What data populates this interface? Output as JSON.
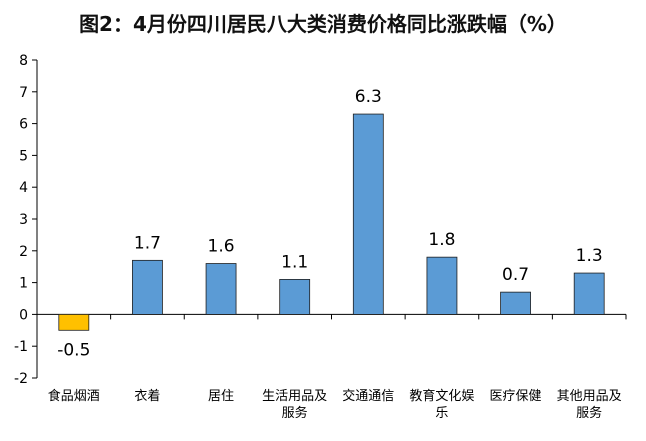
{
  "chart_data": {
    "type": "bar",
    "title": "图2：4月份四川居民八大类消费价格同比涨跌幅（%）",
    "categories": [
      [
        "食品烟酒"
      ],
      [
        "衣着"
      ],
      [
        "居住"
      ],
      [
        "生活用品及",
        "服务"
      ],
      [
        "交通通信"
      ],
      [
        "教育文化娱",
        "乐"
      ],
      [
        "医疗保健"
      ],
      [
        "其他用品及",
        "服务"
      ]
    ],
    "values": [
      -0.5,
      1.7,
      1.6,
      1.1,
      6.3,
      1.8,
      0.7,
      1.3
    ],
    "data_labels": [
      "-0.5",
      "1.7",
      "1.6",
      "1.1",
      "6.3",
      "1.8",
      "0.7",
      "1.3"
    ],
    "ylim": [
      -2,
      8
    ],
    "yticks": [
      -2,
      -1,
      0,
      1,
      2,
      3,
      4,
      5,
      6,
      7,
      8
    ],
    "xlabel": "",
    "ylabel": "",
    "grid": false,
    "colors": {
      "positive": "#5B9BD5",
      "negative": "#FFC000",
      "bar_stroke": "#1F1F1F",
      "axis": "#000000"
    }
  }
}
